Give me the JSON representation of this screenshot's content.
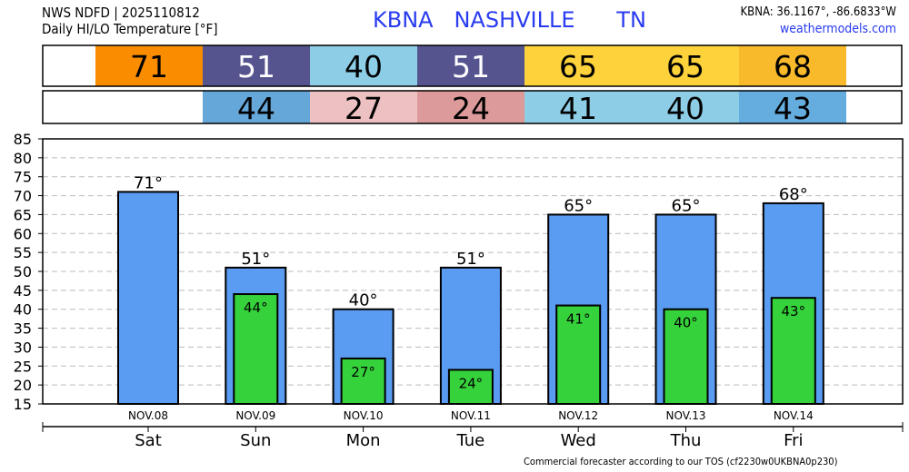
{
  "header": {
    "line1": "NWS NDFD | 2025110812",
    "line2": "Daily HI/LO Temperature [°F]",
    "title": "KBNA   NASHVILLE      TN",
    "coords": "KBNA: 36.1167°, -86.6833°W",
    "site": "weathermodels.com"
  },
  "footer": "Commercial forecaster according to our TOS (cf2230w0UKBNA0p230)",
  "colors": {
    "hi_bar": "#5a9cf2",
    "lo_bar": "#36d23c"
  },
  "strip_hi": [
    {
      "value": "71",
      "bg": "#fa8c00",
      "fg": "#000"
    },
    {
      "value": "51",
      "bg": "#55548f",
      "fg": "#fff"
    },
    {
      "value": "40",
      "bg": "#8ecde6",
      "fg": "#000"
    },
    {
      "value": "51",
      "bg": "#55548f",
      "fg": "#fff"
    },
    {
      "value": "65",
      "bg": "#fdd23b",
      "fg": "#000"
    },
    {
      "value": "65",
      "bg": "#fdd23b",
      "fg": "#000"
    },
    {
      "value": "68",
      "bg": "#f8b92a",
      "fg": "#000"
    }
  ],
  "strip_lo": [
    {
      "value": "",
      "bg": "#ffffff",
      "fg": "#000"
    },
    {
      "value": "44",
      "bg": "#66a7d9",
      "fg": "#000"
    },
    {
      "value": "27",
      "bg": "#edc1c1",
      "fg": "#000"
    },
    {
      "value": "24",
      "bg": "#dc9a9a",
      "fg": "#000"
    },
    {
      "value": "41",
      "bg": "#8ecde6",
      "fg": "#000"
    },
    {
      "value": "40",
      "bg": "#8ecde6",
      "fg": "#000"
    },
    {
      "value": "43",
      "bg": "#66addf",
      "fg": "#000"
    }
  ],
  "chart_data": {
    "type": "bar",
    "title": "Daily HI/LO Temperature [°F]",
    "categories": [
      "NOV.08",
      "NOV.09",
      "NOV.10",
      "NOV.11",
      "NOV.12",
      "NOV.13",
      "NOV.14"
    ],
    "days": [
      "Sat",
      "Sun",
      "Mon",
      "Tue",
      "Wed",
      "Thu",
      "Fri"
    ],
    "series": [
      {
        "name": "HI",
        "values": [
          71,
          51,
          40,
          51,
          65,
          65,
          68
        ],
        "labels": [
          "71°",
          "51°",
          "40°",
          "51°",
          "65°",
          "65°",
          "68°"
        ]
      },
      {
        "name": "LO",
        "values": [
          null,
          44,
          27,
          24,
          41,
          40,
          43
        ],
        "labels": [
          "",
          "44°",
          "27°",
          "24°",
          "41°",
          "40°",
          "43°"
        ]
      }
    ],
    "ylim": [
      15,
      85
    ],
    "yticks": [
      "15",
      "20",
      "25",
      "30",
      "35",
      "40",
      "45",
      "50",
      "55",
      "60",
      "65",
      "70",
      "75",
      "80",
      "85"
    ],
    "grid": true
  }
}
